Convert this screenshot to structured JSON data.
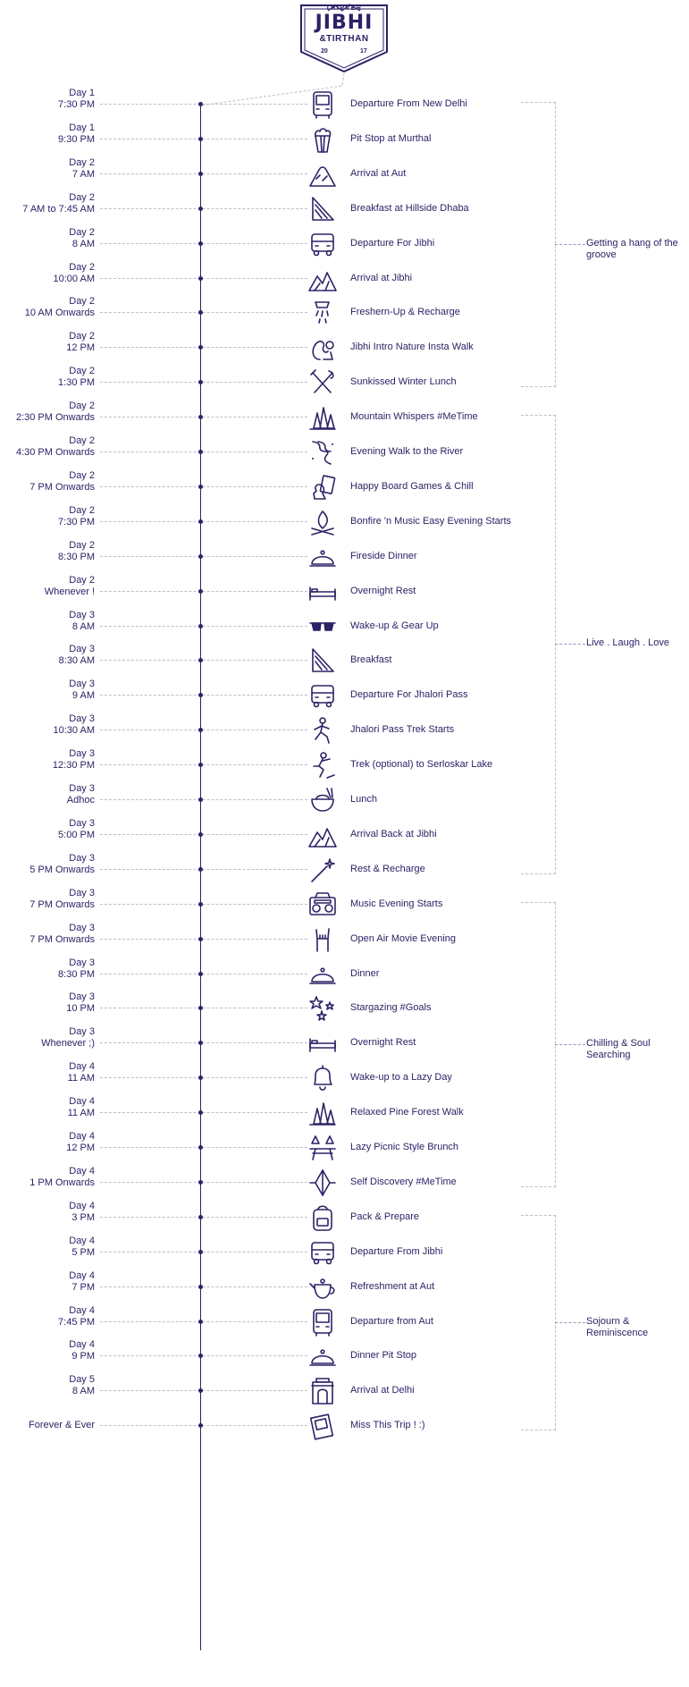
{
  "logo": {
    "brand": "TRIPVER",
    "title": "JIBHI",
    "subtitle": "&TIRTHAN",
    "year_left": "20",
    "year_right": "17"
  },
  "colors": {
    "primary": "#2e2166",
    "guide": "#bdbdd0"
  },
  "items": [
    {
      "day": "Day 1",
      "time": "7:30 PM",
      "event": "Departure From New Delhi",
      "icon": "bus-icon"
    },
    {
      "day": "Day 1",
      "time": "9:30 PM",
      "event": "Pit Stop at Murthal",
      "icon": "popcorn-icon"
    },
    {
      "day": "Day 2",
      "time": "7 AM",
      "event": "Arrival at Aut",
      "icon": "hill-icon"
    },
    {
      "day": "Day 2",
      "time": "7 AM to 7:45 AM",
      "event": "Breakfast at Hillside Dhaba",
      "icon": "sandwich-icon"
    },
    {
      "day": "Day 2",
      "time": "8 AM",
      "event": "Departure For Jibhi",
      "icon": "van-icon"
    },
    {
      "day": "Day 2",
      "time": "10:00 AM",
      "event": "Arrival at Jibhi",
      "icon": "mountains-icon"
    },
    {
      "day": "Day 2",
      "time": "10 AM Onwards",
      "event": "Freshern-Up & Recharge",
      "icon": "shower-icon"
    },
    {
      "day": "Day 2",
      "time": "12 PM",
      "event": "Jibhi Intro Nature Insta Walk",
      "icon": "squirrel-icon"
    },
    {
      "day": "Day 2",
      "time": "1:30 PM",
      "event": "Sunkissed Winter Lunch",
      "icon": "fork-knife-icon"
    },
    {
      "day": "Day 2",
      "time": "2:30 PM Onwards",
      "event": "Mountain Whispers #MeTime",
      "icon": "pine-trees-icon"
    },
    {
      "day": "Day 2",
      "time": "4:30 PM Onwards",
      "event": "Evening Walk to the River",
      "icon": "river-icon"
    },
    {
      "day": "Day 2",
      "time": "7 PM Onwards",
      "event": "Happy Board Games & Chill",
      "icon": "board-games-icon"
    },
    {
      "day": "Day 2",
      "time": "7:30 PM",
      "event": "Bonfire 'n Music Easy Evening Starts",
      "icon": "bonfire-icon"
    },
    {
      "day": "Day 2",
      "time": "8:30 PM",
      "event": "Fireside Dinner",
      "icon": "cloche-icon"
    },
    {
      "day": "Day 2",
      "time": "Whenever !",
      "event": "Overnight Rest",
      "icon": "bed-icon"
    },
    {
      "day": "Day 3",
      "time": "8 AM",
      "event": "Wake-up & Gear Up",
      "icon": "sunglasses-icon"
    },
    {
      "day": "Day 3",
      "time": "8:30 AM",
      "event": "Breakfast",
      "icon": "sandwich-icon"
    },
    {
      "day": "Day 3",
      "time": "9 AM",
      "event": "Departure For Jhalori Pass",
      "icon": "van-icon"
    },
    {
      "day": "Day 3",
      "time": "10:30 AM",
      "event": "Jhalori Pass Trek Starts",
      "icon": "hiker-icon"
    },
    {
      "day": "Day 3",
      "time": "12:30 PM",
      "event": "Trek (optional) to Serloskar Lake",
      "icon": "climber-icon"
    },
    {
      "day": "Day 3",
      "time": "Adhoc",
      "event": "Lunch",
      "icon": "bowl-icon"
    },
    {
      "day": "Day 3",
      "time": "5:00 PM",
      "event": "Arrival Back at Jibhi",
      "icon": "mountains-icon"
    },
    {
      "day": "Day 3",
      "time": "5 PM Onwards",
      "event": "Rest & Recharge",
      "icon": "magic-wand-icon"
    },
    {
      "day": "Day 3",
      "time": "7 PM Onwards",
      "event": "Music Evening Starts",
      "icon": "boombox-icon"
    },
    {
      "day": "Day 3",
      "time": "7 PM Onwards",
      "event": "Open Air Movie Evening",
      "icon": "rock-hand-icon"
    },
    {
      "day": "Day 3",
      "time": "8:30 PM",
      "event": "Dinner",
      "icon": "cloche-icon"
    },
    {
      "day": "Day 3",
      "time": "10 PM",
      "event": "Stargazing #Goals",
      "icon": "stars-icon"
    },
    {
      "day": "Day 3",
      "time": "Whenever ;)",
      "event": "Overnight Rest",
      "icon": "bed-icon"
    },
    {
      "day": "Day 4",
      "time": "11 AM",
      "event": "Wake-up to a Lazy Day",
      "icon": "bell-icon"
    },
    {
      "day": "Day 4",
      "time": "11 AM",
      "event": "Relaxed Pine Forest Walk",
      "icon": "pine-trees-icon"
    },
    {
      "day": "Day 4",
      "time": "12 PM",
      "event": "Lazy Picnic Style Brunch",
      "icon": "picnic-table-icon"
    },
    {
      "day": "Day 4",
      "time": "1 PM Onwards",
      "event": "Self Discovery #MeTime",
      "icon": "crystal-icon"
    },
    {
      "day": "Day 4",
      "time": "3 PM",
      "event": "Pack & Prepare",
      "icon": "backpack-icon"
    },
    {
      "day": "Day 4",
      "time": "5 PM",
      "event": "Departure From Jibhi",
      "icon": "van-icon"
    },
    {
      "day": "Day 4",
      "time": "7 PM",
      "event": "Refreshment at Aut",
      "icon": "teapot-icon"
    },
    {
      "day": "Day 4",
      "time": "7:45 PM",
      "event": "Departure from Aut",
      "icon": "bus-icon"
    },
    {
      "day": "Day 4",
      "time": "9 PM",
      "event": "Dinner Pit Stop",
      "icon": "cloche-icon"
    },
    {
      "day": "Day 5",
      "time": "8 AM",
      "event": "Arrival at Delhi",
      "icon": "india-gate-icon"
    },
    {
      "day": "",
      "time": "Forever & Ever",
      "event": "Miss This Trip ! :)",
      "icon": "photos-icon"
    }
  ],
  "sections": [
    {
      "label": "Getting a hang of the groove",
      "from": 0,
      "to": 8
    },
    {
      "label": "Live . Laugh . Love",
      "from": 9,
      "to": 22
    },
    {
      "label": "Chilling & Soul Searching",
      "from": 23,
      "to": 31
    },
    {
      "label": "Sojourn & Reminiscence",
      "from": 32,
      "to": 38
    }
  ]
}
